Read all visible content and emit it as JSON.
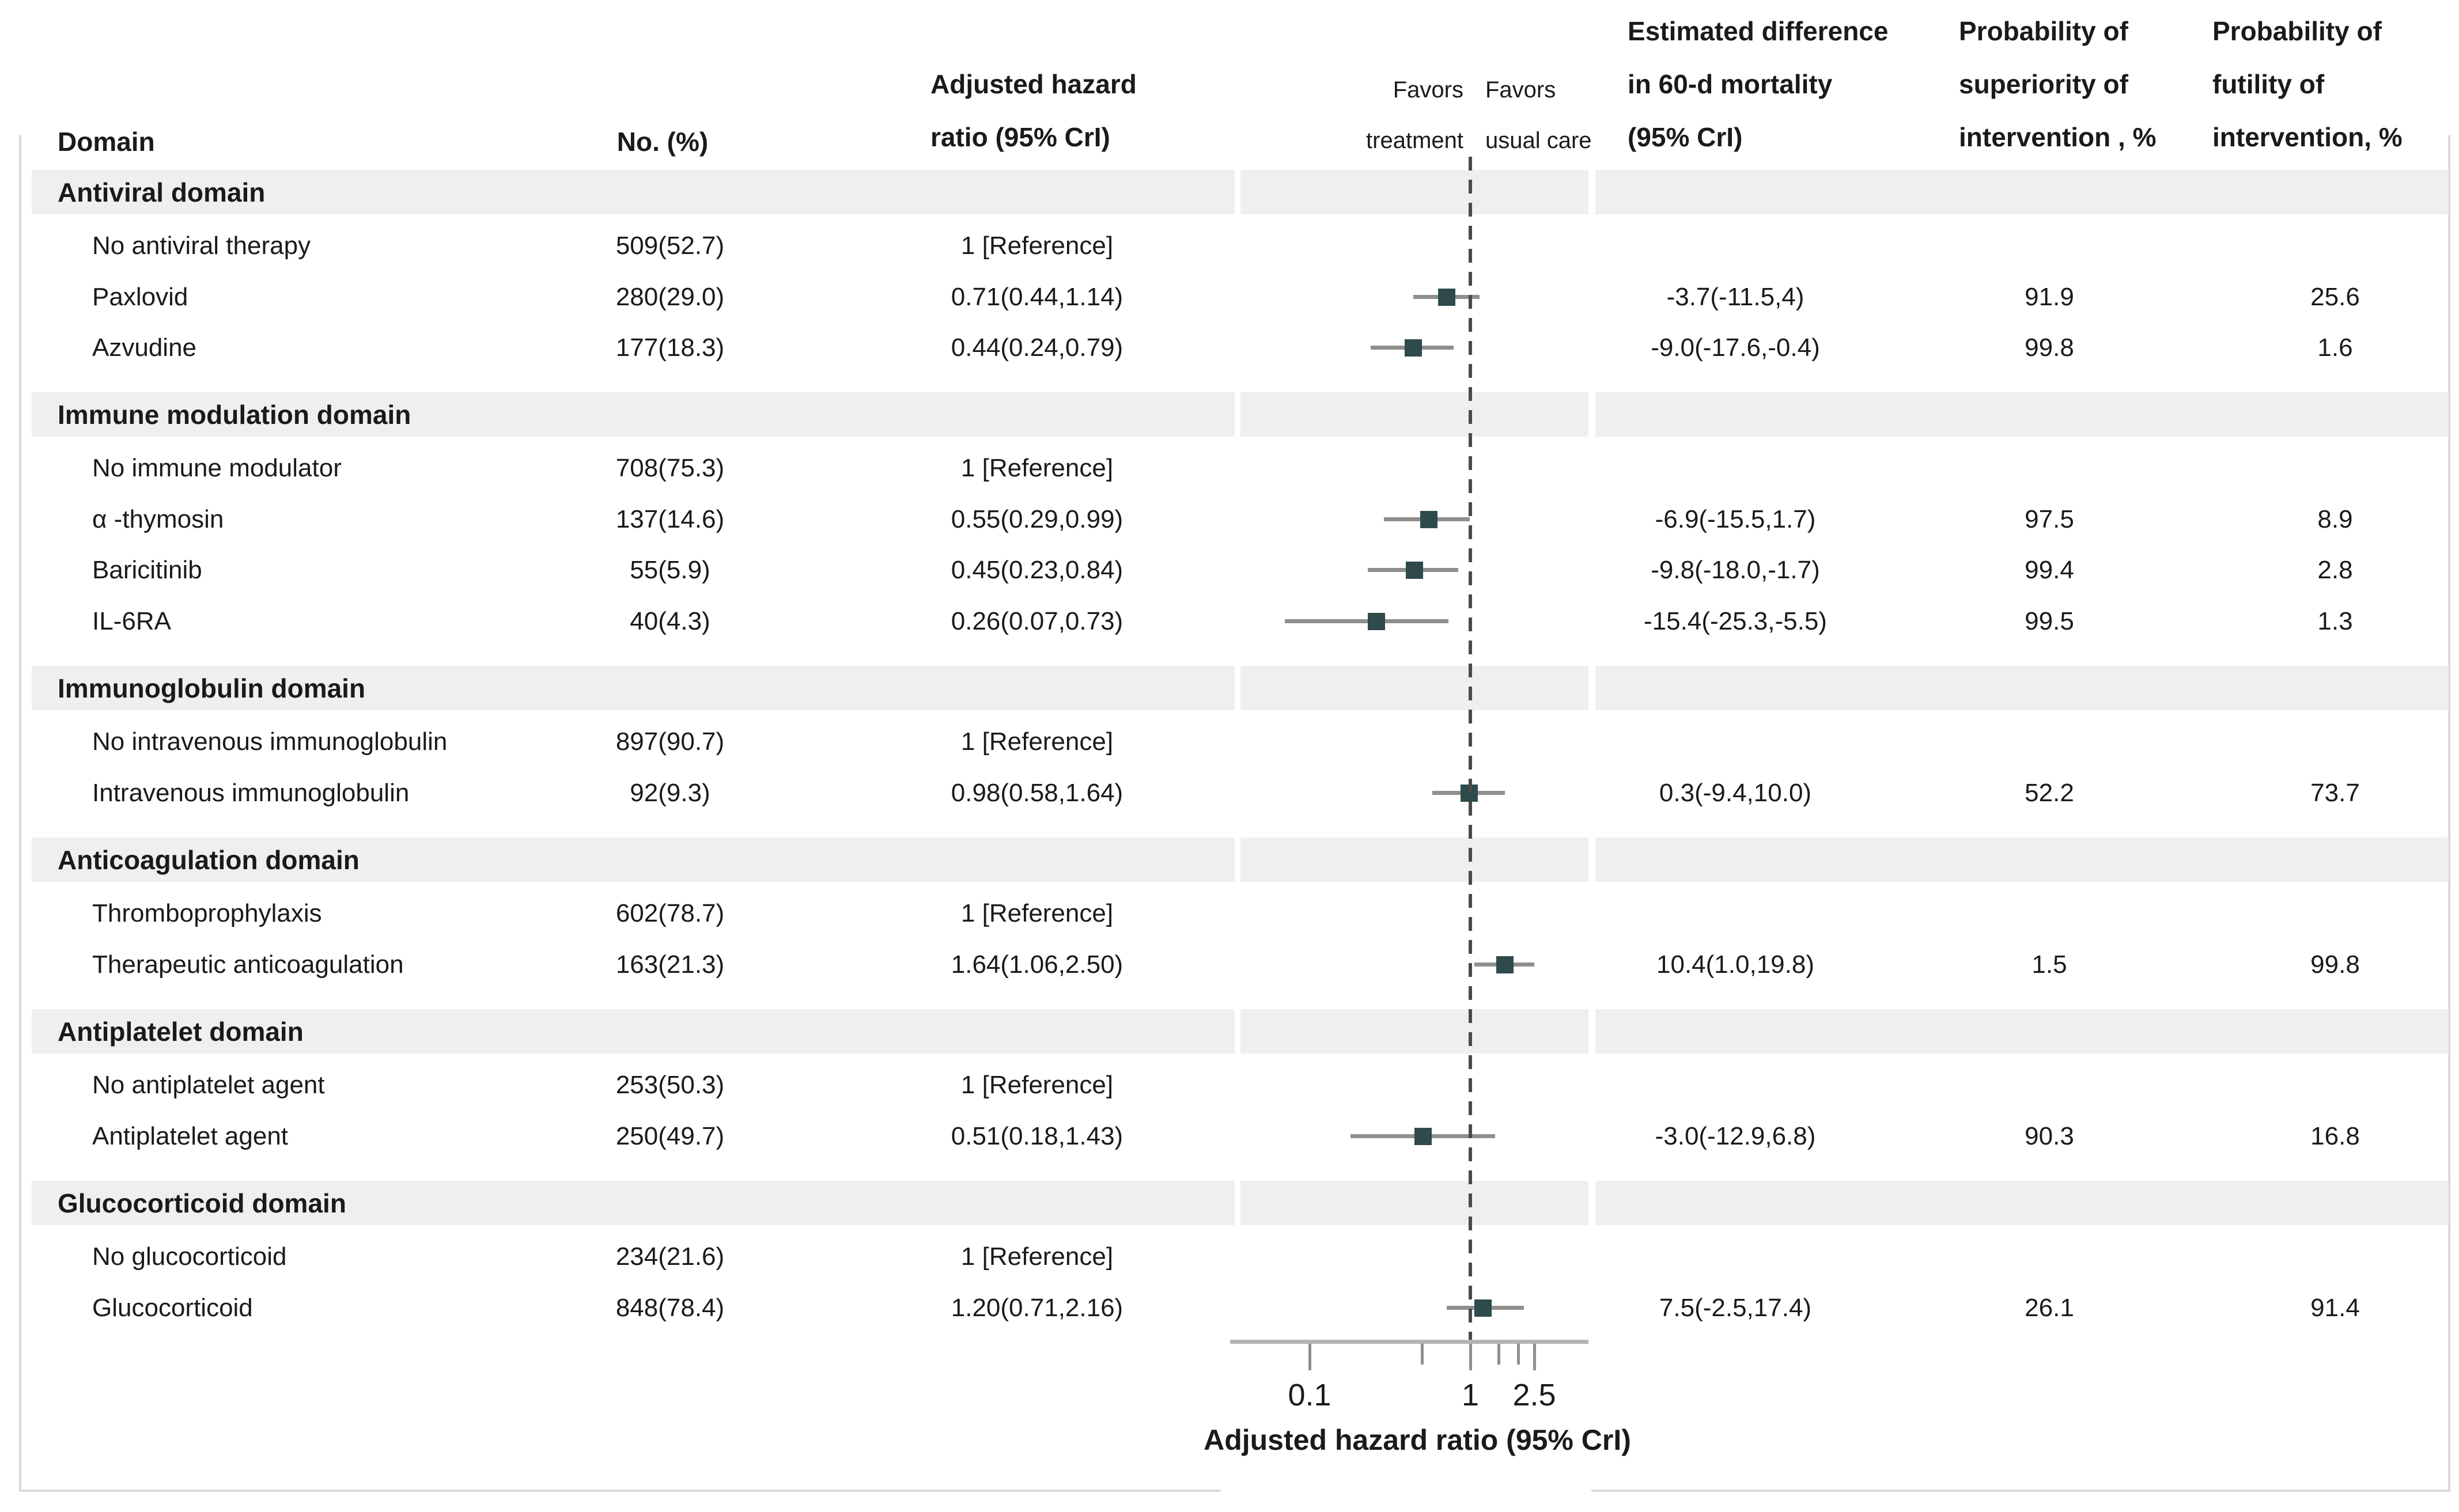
{
  "header": {
    "domain": "Domain",
    "no_pct": "No. (%)",
    "ahr": [
      "Adjusted hazard",
      "ratio (95% CrI)"
    ],
    "favors_treatment": [
      "Favors",
      "treatment"
    ],
    "favors_usual_care": [
      "Favors",
      "usual care"
    ],
    "est_diff": [
      "Estimated difference",
      "in 60-d mortality",
      "(95% CrI)"
    ],
    "prob_superiority": [
      "Probability of",
      "superiority of",
      "intervention , %"
    ],
    "prob_futility": [
      "Probability of",
      "futility of",
      "intervention, %"
    ]
  },
  "chart_data": {
    "type": "forest",
    "x_scale": "log10",
    "xlim": [
      0.032,
      5.3
    ],
    "reference_line": 1,
    "xlabel": "Adjusted hazard ratio (95% CrI)",
    "axis_ticks": [
      {
        "value": 0.1,
        "label": "0.1",
        "major": true
      },
      {
        "value": 0.5,
        "label": "",
        "major": false
      },
      {
        "value": 1,
        "label": "1",
        "major": true
      },
      {
        "value": 1.5,
        "label": "",
        "major": false
      },
      {
        "value": 2,
        "label": "",
        "major": false
      },
      {
        "value": 2.5,
        "label": "2.5",
        "major": true
      }
    ],
    "groups": [
      {
        "domain": "Antiviral domain",
        "rows": [
          {
            "label": "No antiviral therapy",
            "n_pct": "509(52.7)",
            "ahr_text": "1 [Reference]"
          },
          {
            "label": "Paxlovid",
            "n_pct": "280(29.0)",
            "ahr_text": "0.71(0.44,1.14)",
            "hr": 0.71,
            "lo": 0.44,
            "hi": 1.14,
            "est_diff": "-3.7(-11.5,4)",
            "p_sup": "91.9",
            "p_fut": "25.6"
          },
          {
            "label": "Azvudine",
            "n_pct": "177(18.3)",
            "ahr_text": "0.44(0.24,0.79)",
            "hr": 0.44,
            "lo": 0.24,
            "hi": 0.79,
            "est_diff": "-9.0(-17.6,-0.4)",
            "p_sup": "99.8",
            "p_fut": "1.6"
          }
        ]
      },
      {
        "domain": "Immune modulation domain",
        "rows": [
          {
            "label": "No immune modulator",
            "n_pct": "708(75.3)",
            "ahr_text": "1 [Reference]"
          },
          {
            "label": "α -thymosin",
            "n_pct": "137(14.6)",
            "ahr_text": "0.55(0.29,0.99)",
            "hr": 0.55,
            "lo": 0.29,
            "hi": 0.99,
            "est_diff": "-6.9(-15.5,1.7)",
            "p_sup": "97.5",
            "p_fut": "8.9"
          },
          {
            "label": "Baricitinib",
            "n_pct": "55(5.9)",
            "ahr_text": "0.45(0.23,0.84)",
            "hr": 0.45,
            "lo": 0.23,
            "hi": 0.84,
            "est_diff": "-9.8(-18.0,-1.7)",
            "p_sup": "99.4",
            "p_fut": "2.8"
          },
          {
            "label": "IL-6RA",
            "n_pct": "40(4.3)",
            "ahr_text": "0.26(0.07,0.73)",
            "hr": 0.26,
            "lo": 0.07,
            "hi": 0.73,
            "est_diff": "-15.4(-25.3,-5.5)",
            "p_sup": "99.5",
            "p_fut": "1.3"
          }
        ]
      },
      {
        "domain": "Immunoglobulin domain",
        "rows": [
          {
            "label": "No intravenous immunoglobulin",
            "n_pct": "897(90.7)",
            "ahr_text": "1 [Reference]"
          },
          {
            "label": "Intravenous immunoglobulin",
            "n_pct": "92(9.3)",
            "ahr_text": "0.98(0.58,1.64)",
            "hr": 0.98,
            "lo": 0.58,
            "hi": 1.64,
            "est_diff": "0.3(-9.4,10.0)",
            "p_sup": "52.2",
            "p_fut": "73.7"
          }
        ]
      },
      {
        "domain": "Anticoagulation domain",
        "rows": [
          {
            "label": "Thromboprophylaxis",
            "n_pct": "602(78.7)",
            "ahr_text": "1 [Reference]"
          },
          {
            "label": "Therapeutic anticoagulation",
            "n_pct": "163(21.3)",
            "ahr_text": "1.64(1.06,2.50)",
            "hr": 1.64,
            "lo": 1.06,
            "hi": 2.5,
            "est_diff": "10.4(1.0,19.8)",
            "p_sup": "1.5",
            "p_fut": "99.8"
          }
        ]
      },
      {
        "domain": "Antiplatelet domain",
        "rows": [
          {
            "label": "No antiplatelet agent",
            "n_pct": "253(50.3)",
            "ahr_text": "1 [Reference]"
          },
          {
            "label": "Antiplatelet agent",
            "n_pct": "250(49.7)",
            "ahr_text": "0.51(0.18,1.43)",
            "hr": 0.51,
            "lo": 0.18,
            "hi": 1.43,
            "est_diff": "-3.0(-12.9,6.8)",
            "p_sup": "90.3",
            "p_fut": "16.8"
          }
        ]
      },
      {
        "domain": "Glucocorticoid domain",
        "rows": [
          {
            "label": "No glucocorticoid",
            "n_pct": "234(21.6)",
            "ahr_text": "1 [Reference]"
          },
          {
            "label": "Glucocorticoid",
            "n_pct": "848(78.4)",
            "ahr_text": "1.20(0.71,2.16)",
            "hr": 1.2,
            "lo": 0.71,
            "hi": 2.16,
            "est_diff": "7.5(-2.5,17.4)",
            "p_sup": "26.1",
            "p_fut": "91.4"
          }
        ]
      }
    ],
    "colors": {
      "marker": "#2e4a4b",
      "ci_line": "#8f8f8f",
      "band": "#efefef",
      "reference_line": "#4a4a4a",
      "axis": "#b3b3b3",
      "text": "#1a1a1a"
    },
    "legend_position": "none",
    "grid": false
  }
}
